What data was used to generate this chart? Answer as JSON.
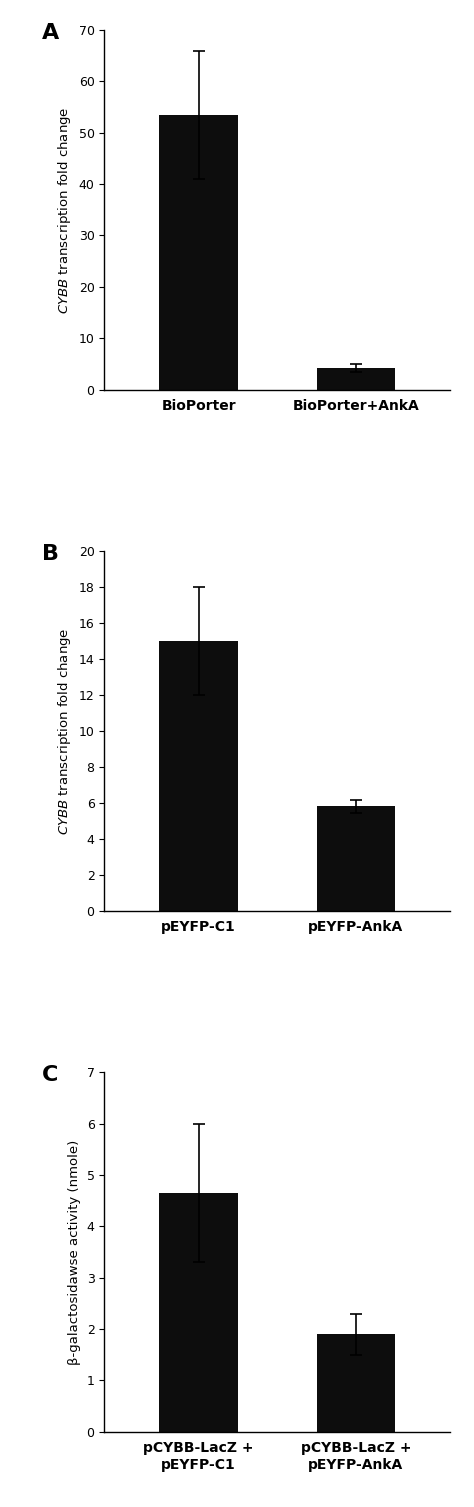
{
  "panel_A": {
    "categories": [
      "BioPorter",
      "BioPorter+AnkA"
    ],
    "values": [
      53.5,
      4.2
    ],
    "errors": [
      12.5,
      0.8
    ],
    "ylabel": "CYBB transcription fold change",
    "ylim": [
      0,
      70
    ],
    "yticks": [
      0,
      10,
      20,
      30,
      40,
      50,
      60,
      70
    ],
    "label": "A"
  },
  "panel_B": {
    "categories": [
      "pEYFP-C1",
      "pEYFP-AnkA"
    ],
    "values": [
      15.0,
      5.8
    ],
    "errors": [
      3.0,
      0.35
    ],
    "ylabel": "CYBB transcription fold change",
    "ylim": [
      0,
      20
    ],
    "yticks": [
      0,
      2,
      4,
      6,
      8,
      10,
      12,
      14,
      16,
      18,
      20
    ],
    "label": "B"
  },
  "panel_C": {
    "categories": [
      "pCYBB-LacZ +\npEYFP-C1",
      "pCYBB-LacZ +\npEYFP-AnkA"
    ],
    "values": [
      4.65,
      1.9
    ],
    "errors": [
      1.35,
      0.4
    ],
    "ylabel": "β-galactosidawse activity (nmole)",
    "ylim": [
      0,
      7
    ],
    "yticks": [
      0,
      1,
      2,
      3,
      4,
      5,
      6,
      7
    ],
    "label": "C"
  },
  "bar_color": "#0d0d0d",
  "bar_width": 0.5,
  "figsize": [
    4.74,
    15.07
  ],
  "dpi": 100
}
